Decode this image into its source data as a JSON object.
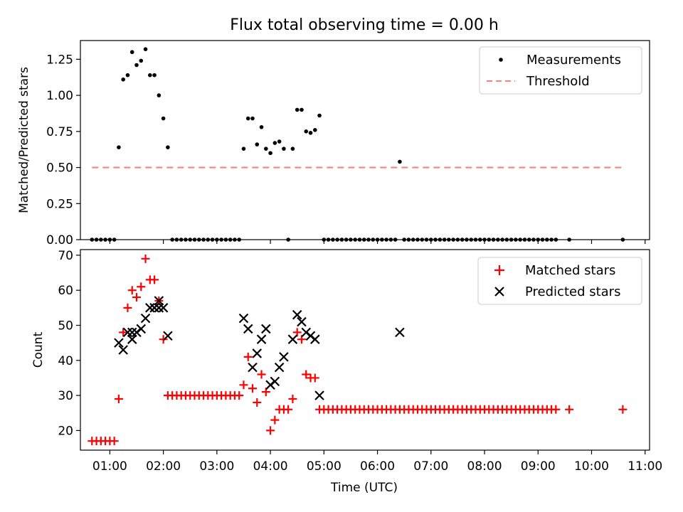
{
  "title": "Flux total observing time = 0.00 h",
  "chart_data": [
    {
      "type": "scatter",
      "title": "Flux total observing time = 0.00 h",
      "xlabel": "",
      "ylabel": "Matched/Predicted stars",
      "xlim": [
        "00:27",
        "11:05"
      ],
      "ylim": [
        0,
        1.38
      ],
      "yticks": [
        "0.00",
        "0.25",
        "0.50",
        "0.75",
        "1.00",
        "1.25"
      ],
      "legend_position": "top-right",
      "series": [
        {
          "name": "Measurements",
          "kind": "points",
          "color": "#000000",
          "points": [
            [
              "00:40",
              0
            ],
            [
              "00:45",
              0
            ],
            [
              "00:50",
              0
            ],
            [
              "00:55",
              0
            ],
            [
              "01:00",
              0
            ],
            [
              "01:05",
              0
            ],
            [
              "01:10",
              0.64
            ],
            [
              "01:15",
              1.11
            ],
            [
              "01:20",
              1.14
            ],
            [
              "01:25",
              1.3
            ],
            [
              "01:30",
              1.21
            ],
            [
              "01:35",
              1.24
            ],
            [
              "01:40",
              1.32
            ],
            [
              "01:45",
              1.14
            ],
            [
              "01:50",
              1.14
            ],
            [
              "01:55",
              1.0
            ],
            [
              "02:00",
              0.84
            ],
            [
              "02:05",
              0.64
            ],
            [
              "02:10",
              0
            ],
            [
              "02:15",
              0
            ],
            [
              "02:20",
              0
            ],
            [
              "02:25",
              0
            ],
            [
              "02:30",
              0
            ],
            [
              "02:35",
              0
            ],
            [
              "02:40",
              0
            ],
            [
              "02:45",
              0
            ],
            [
              "02:50",
              0
            ],
            [
              "02:55",
              0
            ],
            [
              "03:00",
              0
            ],
            [
              "03:05",
              0
            ],
            [
              "03:10",
              0
            ],
            [
              "03:15",
              0
            ],
            [
              "03:20",
              0
            ],
            [
              "03:25",
              0
            ],
            [
              "03:30",
              0.63
            ],
            [
              "03:35",
              0.84
            ],
            [
              "03:40",
              0.84
            ],
            [
              "03:45",
              0.66
            ],
            [
              "03:50",
              0.78
            ],
            [
              "03:55",
              0.63
            ],
            [
              "04:00",
              0.6
            ],
            [
              "04:05",
              0.67
            ],
            [
              "04:10",
              0.68
            ],
            [
              "04:15",
              0.63
            ],
            [
              "04:20",
              0
            ],
            [
              "04:25",
              0.63
            ],
            [
              "04:30",
              0.9
            ],
            [
              "04:35",
              0.9
            ],
            [
              "04:40",
              0.75
            ],
            [
              "04:45",
              0.74
            ],
            [
              "04:50",
              0.76
            ],
            [
              "04:55",
              0.86
            ],
            [
              "05:00",
              0
            ],
            [
              "05:05",
              0
            ],
            [
              "05:10",
              0
            ],
            [
              "05:15",
              0
            ],
            [
              "05:20",
              0
            ],
            [
              "05:25",
              0
            ],
            [
              "05:30",
              0
            ],
            [
              "05:35",
              0
            ],
            [
              "05:40",
              0
            ],
            [
              "05:45",
              0
            ],
            [
              "05:50",
              0
            ],
            [
              "05:55",
              0
            ],
            [
              "06:00",
              0
            ],
            [
              "06:05",
              0
            ],
            [
              "06:10",
              0
            ],
            [
              "06:15",
              0
            ],
            [
              "06:20",
              0
            ],
            [
              "06:25",
              0.54
            ],
            [
              "06:30",
              0
            ],
            [
              "06:35",
              0
            ],
            [
              "06:40",
              0
            ],
            [
              "06:45",
              0
            ],
            [
              "06:50",
              0
            ],
            [
              "06:55",
              0
            ],
            [
              "07:00",
              0
            ],
            [
              "07:05",
              0
            ],
            [
              "07:10",
              0
            ],
            [
              "07:15",
              0
            ],
            [
              "07:20",
              0
            ],
            [
              "07:25",
              0
            ],
            [
              "07:30",
              0
            ],
            [
              "07:35",
              0
            ],
            [
              "07:40",
              0
            ],
            [
              "07:45",
              0
            ],
            [
              "07:50",
              0
            ],
            [
              "07:55",
              0
            ],
            [
              "08:00",
              0
            ],
            [
              "08:05",
              0
            ],
            [
              "08:10",
              0
            ],
            [
              "08:15",
              0
            ],
            [
              "08:20",
              0
            ],
            [
              "08:25",
              0
            ],
            [
              "08:30",
              0
            ],
            [
              "08:35",
              0
            ],
            [
              "08:40",
              0
            ],
            [
              "08:45",
              0
            ],
            [
              "08:50",
              0
            ],
            [
              "08:55",
              0
            ],
            [
              "09:00",
              0
            ],
            [
              "09:05",
              0
            ],
            [
              "09:10",
              0
            ],
            [
              "09:15",
              0
            ],
            [
              "09:20",
              0
            ],
            [
              "09:35",
              0
            ],
            [
              "10:35",
              0
            ]
          ]
        },
        {
          "name": "Threshold",
          "kind": "dashed-line",
          "color": "#ff7f7f",
          "points": [
            [
              "00:40",
              0.5
            ],
            [
              "10:35",
              0.5
            ]
          ]
        }
      ]
    },
    {
      "type": "scatter",
      "title": "",
      "xlabel": "Time (UTC)",
      "ylabel": "Count",
      "xlim": [
        "00:27",
        "11:05"
      ],
      "ylim": [
        14.4,
        71.6
      ],
      "yticks": [
        "20",
        "30",
        "40",
        "50",
        "60",
        "70"
      ],
      "xticks": [
        "01:00",
        "02:00",
        "03:00",
        "04:00",
        "05:00",
        "06:00",
        "07:00",
        "08:00",
        "09:00",
        "10:00",
        "11:00"
      ],
      "legend_position": "top-right",
      "series": [
        {
          "name": "Matched stars",
          "kind": "plus",
          "color": "#ff0000",
          "points": [
            [
              "00:40",
              17
            ],
            [
              "00:45",
              17
            ],
            [
              "00:50",
              17
            ],
            [
              "00:55",
              17
            ],
            [
              "01:00",
              17
            ],
            [
              "01:05",
              17
            ],
            [
              "01:10",
              29
            ],
            [
              "01:15",
              48
            ],
            [
              "01:20",
              55
            ],
            [
              "01:25",
              60
            ],
            [
              "01:30",
              58
            ],
            [
              "01:35",
              61
            ],
            [
              "01:40",
              69
            ],
            [
              "01:45",
              63
            ],
            [
              "01:50",
              63
            ],
            [
              "01:55",
              57
            ],
            [
              "02:00",
              46
            ],
            [
              "02:05",
              30
            ],
            [
              "02:10",
              30
            ],
            [
              "02:15",
              30
            ],
            [
              "02:20",
              30
            ],
            [
              "02:25",
              30
            ],
            [
              "02:30",
              30
            ],
            [
              "02:35",
              30
            ],
            [
              "02:40",
              30
            ],
            [
              "02:45",
              30
            ],
            [
              "02:50",
              30
            ],
            [
              "02:55",
              30
            ],
            [
              "03:00",
              30
            ],
            [
              "03:05",
              30
            ],
            [
              "03:10",
              30
            ],
            [
              "03:15",
              30
            ],
            [
              "03:20",
              30
            ],
            [
              "03:25",
              30
            ],
            [
              "03:30",
              33
            ],
            [
              "03:35",
              41
            ],
            [
              "03:40",
              32
            ],
            [
              "03:45",
              28
            ],
            [
              "03:50",
              36
            ],
            [
              "03:55",
              31
            ],
            [
              "04:00",
              20
            ],
            [
              "04:05",
              23
            ],
            [
              "04:10",
              26
            ],
            [
              "04:15",
              26
            ],
            [
              "04:20",
              26
            ],
            [
              "04:25",
              29
            ],
            [
              "04:30",
              48
            ],
            [
              "04:35",
              46
            ],
            [
              "04:40",
              36
            ],
            [
              "04:45",
              35
            ],
            [
              "04:50",
              35
            ],
            [
              "04:55",
              26
            ],
            [
              "05:00",
              26
            ],
            [
              "05:05",
              26
            ],
            [
              "05:10",
              26
            ],
            [
              "05:15",
              26
            ],
            [
              "05:20",
              26
            ],
            [
              "05:25",
              26
            ],
            [
              "05:30",
              26
            ],
            [
              "05:35",
              26
            ],
            [
              "05:40",
              26
            ],
            [
              "05:45",
              26
            ],
            [
              "05:50",
              26
            ],
            [
              "05:55",
              26
            ],
            [
              "06:00",
              26
            ],
            [
              "06:05",
              26
            ],
            [
              "06:10",
              26
            ],
            [
              "06:15",
              26
            ],
            [
              "06:20",
              26
            ],
            [
              "06:25",
              26
            ],
            [
              "06:30",
              26
            ],
            [
              "06:35",
              26
            ],
            [
              "06:40",
              26
            ],
            [
              "06:45",
              26
            ],
            [
              "06:50",
              26
            ],
            [
              "06:55",
              26
            ],
            [
              "07:00",
              26
            ],
            [
              "07:05",
              26
            ],
            [
              "07:10",
              26
            ],
            [
              "07:15",
              26
            ],
            [
              "07:20",
              26
            ],
            [
              "07:25",
              26
            ],
            [
              "07:30",
              26
            ],
            [
              "07:35",
              26
            ],
            [
              "07:40",
              26
            ],
            [
              "07:45",
              26
            ],
            [
              "07:50",
              26
            ],
            [
              "07:55",
              26
            ],
            [
              "08:00",
              26
            ],
            [
              "08:05",
              26
            ],
            [
              "08:10",
              26
            ],
            [
              "08:15",
              26
            ],
            [
              "08:20",
              26
            ],
            [
              "08:25",
              26
            ],
            [
              "08:30",
              26
            ],
            [
              "08:35",
              26
            ],
            [
              "08:40",
              26
            ],
            [
              "08:45",
              26
            ],
            [
              "08:50",
              26
            ],
            [
              "08:55",
              26
            ],
            [
              "09:00",
              26
            ],
            [
              "09:05",
              26
            ],
            [
              "09:10",
              26
            ],
            [
              "09:15",
              26
            ],
            [
              "09:20",
              26
            ],
            [
              "09:35",
              26
            ],
            [
              "10:35",
              26
            ]
          ]
        },
        {
          "name": "Predicted stars",
          "kind": "x",
          "color": "#000000",
          "points": [
            [
              "01:10",
              45
            ],
            [
              "01:15",
              43
            ],
            [
              "01:20",
              48
            ],
            [
              "01:25",
              46
            ],
            [
              "01:25",
              48
            ],
            [
              "01:30",
              48
            ],
            [
              "01:35",
              49
            ],
            [
              "01:40",
              52
            ],
            [
              "01:45",
              55
            ],
            [
              "01:50",
              55
            ],
            [
              "01:55",
              57
            ],
            [
              "01:55",
              55
            ],
            [
              "02:00",
              55
            ],
            [
              "02:05",
              47
            ],
            [
              "03:30",
              52
            ],
            [
              "03:35",
              49
            ],
            [
              "03:40",
              38
            ],
            [
              "03:45",
              42
            ],
            [
              "03:50",
              46
            ],
            [
              "03:55",
              49
            ],
            [
              "04:00",
              33
            ],
            [
              "04:05",
              34
            ],
            [
              "04:10",
              38
            ],
            [
              "04:15",
              41
            ],
            [
              "04:25",
              46
            ],
            [
              "04:30",
              53
            ],
            [
              "04:35",
              51
            ],
            [
              "04:40",
              48
            ],
            [
              "04:45",
              47
            ],
            [
              "04:50",
              46
            ],
            [
              "04:55",
              30
            ],
            [
              "06:25",
              48
            ]
          ]
        }
      ]
    }
  ]
}
